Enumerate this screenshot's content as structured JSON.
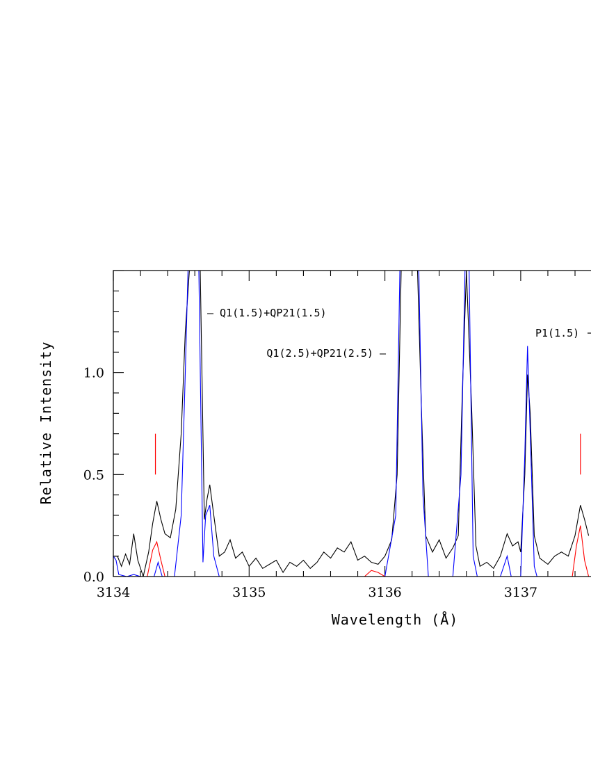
{
  "chart_data": {
    "type": "line",
    "title": "",
    "xlabel": "Wavelength (Å)",
    "ylabel": "Relative Intensity",
    "xlim": [
      3134.0,
      3137.5
    ],
    "ylim": [
      0.0,
      1.5
    ],
    "x_ticks": [
      "3134",
      "3135",
      "3136",
      "3137"
    ],
    "y_ticks": [
      "0.0",
      "0.5",
      "1.0"
    ],
    "grid": false,
    "legend": "none",
    "series": [
      {
        "color": "#000000",
        "points": [
          [
            3134.0,
            0.1
          ],
          [
            3134.03,
            0.1
          ],
          [
            3134.06,
            0.05
          ],
          [
            3134.09,
            0.11
          ],
          [
            3134.12,
            0.06
          ],
          [
            3134.15,
            0.21
          ],
          [
            3134.18,
            0.08
          ],
          [
            3134.22,
            0.0
          ],
          [
            3134.26,
            0.12
          ],
          [
            3134.29,
            0.26
          ],
          [
            3134.32,
            0.37
          ],
          [
            3134.35,
            0.28
          ],
          [
            3134.38,
            0.21
          ],
          [
            3134.42,
            0.19
          ],
          [
            3134.46,
            0.33
          ],
          [
            3134.5,
            0.7
          ],
          [
            3134.53,
            1.2
          ],
          [
            3134.56,
            1.5
          ],
          [
            3134.6,
            1.5
          ],
          [
            3134.64,
            1.5
          ],
          [
            3134.67,
            0.28
          ],
          [
            3134.69,
            0.38
          ],
          [
            3134.71,
            0.45
          ],
          [
            3134.74,
            0.3
          ],
          [
            3134.78,
            0.1
          ],
          [
            3134.82,
            0.12
          ],
          [
            3134.86,
            0.18
          ],
          [
            3134.9,
            0.09
          ],
          [
            3134.95,
            0.12
          ],
          [
            3135.0,
            0.05
          ],
          [
            3135.05,
            0.09
          ],
          [
            3135.1,
            0.04
          ],
          [
            3135.15,
            0.06
          ],
          [
            3135.2,
            0.08
          ],
          [
            3135.25,
            0.02
          ],
          [
            3135.3,
            0.07
          ],
          [
            3135.35,
            0.05
          ],
          [
            3135.4,
            0.08
          ],
          [
            3135.45,
            0.04
          ],
          [
            3135.5,
            0.07
          ],
          [
            3135.55,
            0.12
          ],
          [
            3135.6,
            0.09
          ],
          [
            3135.65,
            0.14
          ],
          [
            3135.7,
            0.12
          ],
          [
            3135.75,
            0.17
          ],
          [
            3135.8,
            0.08
          ],
          [
            3135.85,
            0.1
          ],
          [
            3135.9,
            0.07
          ],
          [
            3135.95,
            0.06
          ],
          [
            3136.0,
            0.1
          ],
          [
            3136.05,
            0.18
          ],
          [
            3136.09,
            0.5
          ],
          [
            3136.12,
            1.5
          ],
          [
            3136.18,
            1.5
          ],
          [
            3136.24,
            1.5
          ],
          [
            3136.27,
            0.8
          ],
          [
            3136.3,
            0.2
          ],
          [
            3136.35,
            0.12
          ],
          [
            3136.4,
            0.18
          ],
          [
            3136.45,
            0.09
          ],
          [
            3136.5,
            0.14
          ],
          [
            3136.54,
            0.2
          ],
          [
            3136.57,
            0.9
          ],
          [
            3136.6,
            1.5
          ],
          [
            3136.64,
            0.8
          ],
          [
            3136.67,
            0.15
          ],
          [
            3136.7,
            0.05
          ],
          [
            3136.75,
            0.07
          ],
          [
            3136.8,
            0.04
          ],
          [
            3136.85,
            0.1
          ],
          [
            3136.9,
            0.21
          ],
          [
            3136.94,
            0.15
          ],
          [
            3136.98,
            0.17
          ],
          [
            3137.0,
            0.12
          ],
          [
            3137.03,
            0.5
          ],
          [
            3137.05,
            0.99
          ],
          [
            3137.07,
            0.8
          ],
          [
            3137.1,
            0.2
          ],
          [
            3137.14,
            0.09
          ],
          [
            3137.2,
            0.06
          ],
          [
            3137.25,
            0.1
          ],
          [
            3137.3,
            0.12
          ],
          [
            3137.35,
            0.1
          ],
          [
            3137.4,
            0.2
          ],
          [
            3137.44,
            0.35
          ],
          [
            3137.47,
            0.28
          ],
          [
            3137.5,
            0.2
          ]
        ]
      },
      {
        "color": "#0000ff",
        "points": [
          [
            3134.0,
            0.1
          ],
          [
            3134.02,
            0.08
          ],
          [
            3134.04,
            0.01
          ],
          [
            3134.1,
            0.0
          ],
          [
            3134.15,
            0.01
          ],
          [
            3134.2,
            0.0
          ],
          [
            3134.3,
            0.0
          ],
          [
            3134.33,
            0.07
          ],
          [
            3134.36,
            0.0
          ],
          [
            3134.45,
            0.0
          ],
          [
            3134.5,
            0.3
          ],
          [
            3134.53,
            1.0
          ],
          [
            3134.55,
            1.5
          ],
          [
            3134.59,
            1.5
          ],
          [
            3134.63,
            1.5
          ],
          [
            3134.66,
            0.07
          ],
          [
            3134.68,
            0.3
          ],
          [
            3134.71,
            0.35
          ],
          [
            3134.74,
            0.1
          ],
          [
            3134.78,
            0.0
          ],
          [
            3136.0,
            0.0
          ],
          [
            3136.08,
            0.3
          ],
          [
            3136.11,
            1.5
          ],
          [
            3136.18,
            1.5
          ],
          [
            3136.25,
            1.5
          ],
          [
            3136.28,
            0.4
          ],
          [
            3136.32,
            0.0
          ],
          [
            3136.5,
            0.0
          ],
          [
            3136.56,
            0.5
          ],
          [
            3136.59,
            1.5
          ],
          [
            3136.62,
            1.5
          ],
          [
            3136.65,
            0.1
          ],
          [
            3136.68,
            0.0
          ],
          [
            3136.85,
            0.0
          ],
          [
            3136.9,
            0.1
          ],
          [
            3136.93,
            0.0
          ],
          [
            3137.0,
            0.0
          ],
          [
            3137.03,
            0.6
          ],
          [
            3137.05,
            1.13
          ],
          [
            3137.07,
            0.7
          ],
          [
            3137.1,
            0.05
          ],
          [
            3137.12,
            0.0
          ],
          [
            3137.5,
            0.0
          ]
        ]
      },
      {
        "color": "#ff0000",
        "points": [
          [
            3134.0,
            0.0
          ],
          [
            3134.25,
            0.0
          ],
          [
            3134.29,
            0.13
          ],
          [
            3134.32,
            0.17
          ],
          [
            3134.35,
            0.08
          ],
          [
            3134.38,
            0.0
          ],
          [
            3135.85,
            0.0
          ],
          [
            3135.9,
            0.03
          ],
          [
            3135.95,
            0.02
          ],
          [
            3136.0,
            0.0
          ],
          [
            3137.38,
            0.0
          ],
          [
            3137.41,
            0.15
          ],
          [
            3137.44,
            0.25
          ],
          [
            3137.47,
            0.08
          ],
          [
            3137.5,
            0.0
          ]
        ]
      }
    ],
    "markers": [
      {
        "x": 3134.31,
        "y_range": [
          0.5,
          0.7
        ],
        "color": "#ff0000"
      },
      {
        "x": 3137.44,
        "y_range": [
          0.5,
          0.7
        ],
        "color": "#ff0000"
      }
    ],
    "annotations": [
      {
        "text": "– Q1(1.5)+QP21(1.5)"
      },
      {
        "text": "Q1(2.5)+QP21(2.5) –"
      },
      {
        "text": "P1(1.5)"
      }
    ]
  }
}
